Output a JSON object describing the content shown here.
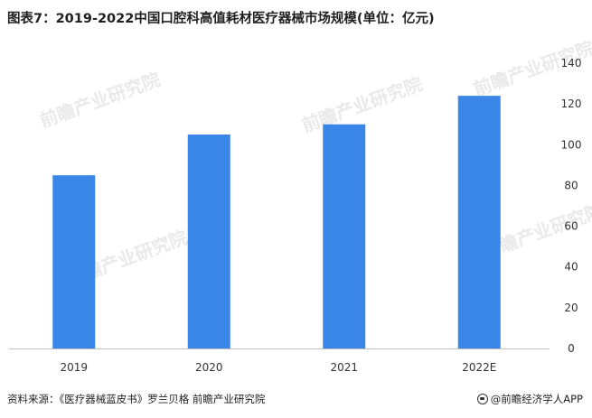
{
  "title": "图表7：2019-2022中国口腔科高值耗材医疗器械市场规模(单位：亿元)",
  "source": "资料来源：《医疗器械蓝皮书》罗兰贝格 前瞻产业研究院",
  "brand": "@前瞻经济学人APP",
  "watermark": "前瞻产业研究院",
  "colors": {
    "bar": "#3a86e6",
    "axis": "#bfbfbf"
  },
  "chart_data": {
    "type": "bar",
    "categories": [
      "2019",
      "2020",
      "2021",
      "2022E"
    ],
    "values": [
      85,
      105,
      110,
      124
    ],
    "ylim": [
      0,
      140
    ],
    "yticks": [
      0,
      20,
      40,
      60,
      80,
      100,
      120,
      140
    ],
    "y_axis_side": "right",
    "grid": false,
    "legend": "none"
  }
}
